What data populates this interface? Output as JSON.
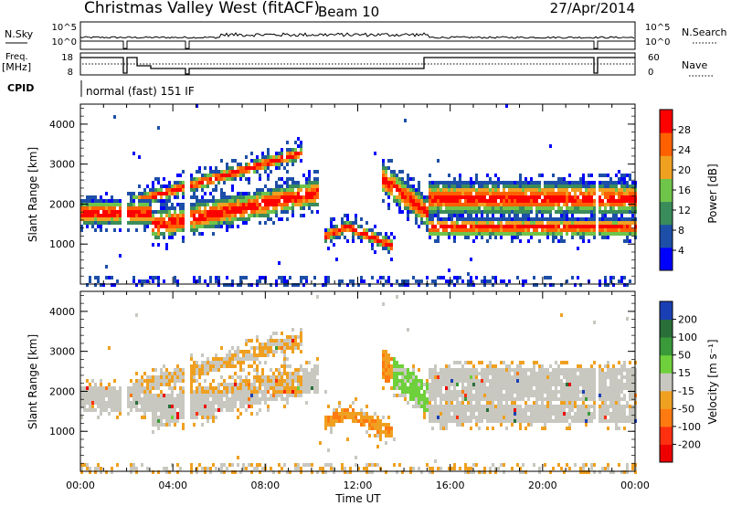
{
  "header": {
    "site": "Christmas Valley West (fitACF)",
    "beam": "Beam 10",
    "date": "27/Apr/2014"
  },
  "status_panels": {
    "nsky_label": "N.Sky",
    "nsky_ticks": [
      "10^5",
      "10^0"
    ],
    "nsearch_label": "N.Search",
    "nsearch_ticks": [
      "10^5",
      "10^0"
    ],
    "freq_label": "Freq.",
    "freq_unit": "[MHz]",
    "freq_ticks": [
      "18",
      "8"
    ],
    "nave_label": "Nave",
    "nave_ticks": [
      "60",
      "0"
    ],
    "cpid_label": "CPID",
    "cpid_text": "normal (fast) 151 IF"
  },
  "chart_data": [
    {
      "type": "heatmap",
      "quantity": "power",
      "ylabel": "Slant Range [km]",
      "yticks": [
        1000,
        2000,
        3000,
        4000
      ],
      "ylim": [
        0,
        4500
      ],
      "x_hours": [
        0,
        24
      ],
      "colorbar_label": "Power [dB]",
      "colorbar_ticks": [
        "4",
        "8",
        "12",
        "16",
        "20",
        "24",
        "28"
      ],
      "colorbar_range": [
        0,
        32
      ],
      "colors": [
        "#0000ff",
        "#1d4fa8",
        "#3a8c5a",
        "#6fc44a",
        "#f0a020",
        "#ff6000",
        "#ff0000"
      ]
    },
    {
      "type": "heatmap",
      "quantity": "velocity",
      "ylabel": "Slant Range [km]",
      "yticks": [
        1000,
        2000,
        3000,
        4000
      ],
      "ylim": [
        0,
        4500
      ],
      "x_hours": [
        0,
        24
      ],
      "colorbar_label": "Velocity [m s⁻¹]",
      "colorbar_ticks": [
        "200",
        "100",
        "50",
        "15",
        "-15",
        "-50",
        "-100",
        "-200"
      ],
      "colors": [
        "#1a3fb5",
        "#2a6f3a",
        "#3a9a3a",
        "#6ed03a",
        "#c8c8c0",
        "#f0a020",
        "#ff7a10",
        "#ff3010",
        "#ee0000"
      ]
    }
  ],
  "xaxis": {
    "xticks": [
      "00:00",
      "04:00",
      "08:00",
      "12:00",
      "16:00",
      "20:00",
      "00:00"
    ],
    "xlabel": "Time UT"
  }
}
